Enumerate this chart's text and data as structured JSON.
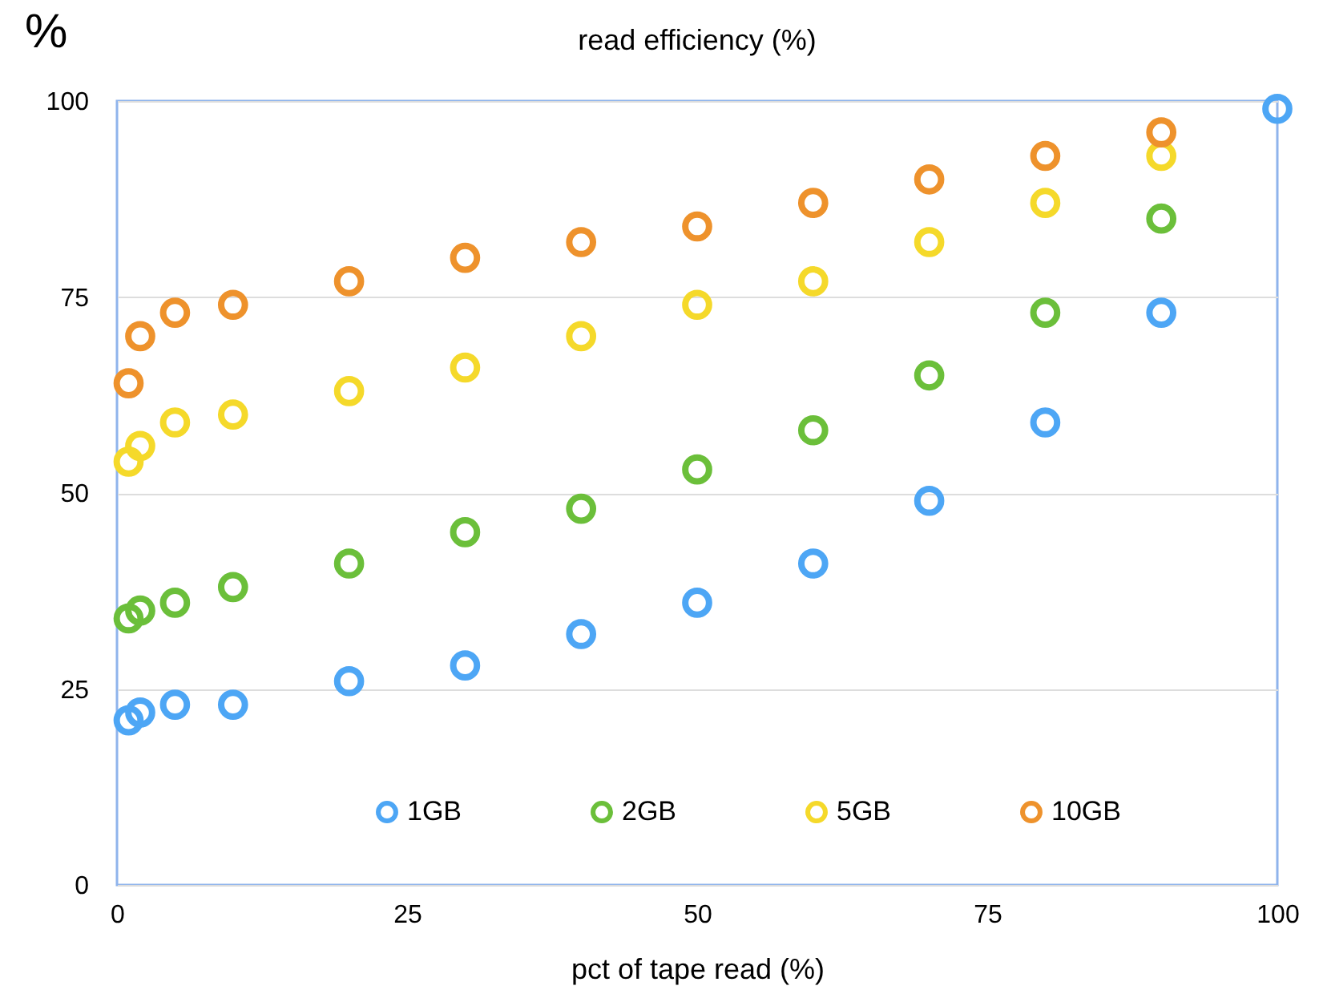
{
  "chart_data": {
    "type": "scatter",
    "title": "read efficiency (%)",
    "xlabel": "pct of tape read (%)",
    "ylabel": "%",
    "x": [
      1,
      2,
      5,
      10,
      20,
      30,
      40,
      50,
      60,
      70,
      80,
      90,
      100
    ],
    "series": [
      {
        "name": "1GB",
        "color": "#4da6f5",
        "values": [
          21,
          22,
          23,
          23,
          26,
          28,
          32,
          36,
          41,
          49,
          59,
          73,
          99
        ]
      },
      {
        "name": "2GB",
        "color": "#6bbf3a",
        "values": [
          34,
          35,
          36,
          38,
          41,
          45,
          48,
          53,
          58,
          65,
          73,
          85,
          null
        ]
      },
      {
        "name": "5GB",
        "color": "#f5d92a",
        "values": [
          54,
          56,
          59,
          60,
          63,
          66,
          70,
          74,
          77,
          82,
          87,
          93,
          null
        ]
      },
      {
        "name": "10GB",
        "color": "#ee922c",
        "values": [
          64,
          70,
          73,
          74,
          77,
          80,
          82,
          84,
          87,
          90,
          93,
          96,
          null
        ]
      }
    ],
    "xlim": [
      0,
      100
    ],
    "ylim": [
      0,
      100
    ],
    "xticks": [
      0,
      25,
      50,
      75,
      100
    ],
    "yticks": [
      0,
      25,
      50,
      75,
      100
    ],
    "grid": "y",
    "legend": "bottom",
    "marker": "circle"
  }
}
